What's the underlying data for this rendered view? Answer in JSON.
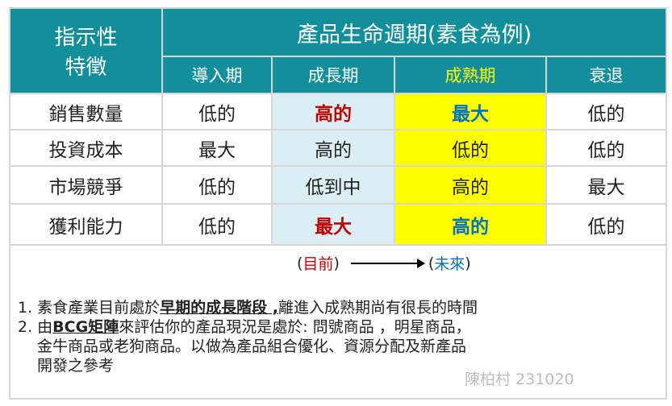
{
  "header": {
    "indicator": "指示性特徵",
    "indicator_line1": "指示性",
    "indicator_line2": "特徵",
    "title": "產品生命週期(素食為例)",
    "stages": [
      "導入期",
      "成長期",
      "成熟期",
      "衰退"
    ]
  },
  "colors": {
    "header_bg": "#138f9b",
    "growth_bg": "#dbeef3",
    "mature_bg": "#ffff00",
    "highlight_red": "#c00000",
    "highlight_blue": "#0070c0"
  },
  "rows": [
    {
      "label": "銷售數量",
      "cells": [
        "低的",
        "高的",
        "最大",
        "低的"
      ]
    },
    {
      "label": "投資成本",
      "cells": [
        "最大",
        "高的",
        "低的",
        "低的"
      ]
    },
    {
      "label": "市場競爭",
      "cells": [
        "低的",
        "低到中",
        "高的",
        "最大"
      ]
    },
    {
      "label": "獲利能力",
      "cells": [
        "低的",
        "最大",
        "高的",
        "低的"
      ]
    }
  ],
  "timeline": {
    "open1": "(",
    "current": "目前",
    "close1": ")",
    "open2": "(",
    "future": "未來",
    "close2": ")"
  },
  "notes": {
    "n1_prefix": "1. 素食產業目前處於",
    "n1_bold": "早期的成長階段 ,",
    "n1_suffix": "離進入成熟期尚有很長的時間",
    "n2_prefix": "2. 由",
    "n2_bold": "BCG矩陣",
    "n2_suffix": "來評估你的產品現況是處於:  問號商品 ，明星商品，",
    "n2_line2": "金牛商品或老狗商品。以做為產品組合優化、資源分配及新產品",
    "n2_line3": "開發之參考"
  },
  "signature": "陳柏村 231020"
}
